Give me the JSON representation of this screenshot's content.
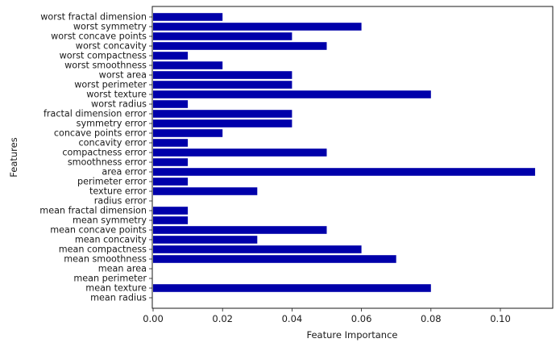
{
  "chart_data": {
    "type": "bar",
    "orientation": "horizontal",
    "title": "",
    "xlabel": "Feature Importance",
    "ylabel": "Features",
    "xlim": [
      0,
      0.1155
    ],
    "xticks": [
      0.0,
      0.02,
      0.04,
      0.06,
      0.08,
      0.1
    ],
    "xtick_labels": [
      "0.00",
      "0.02",
      "0.04",
      "0.06",
      "0.08",
      "0.10"
    ],
    "grid": false,
    "bar_color": "#0000aa",
    "categories": [
      "mean radius",
      "mean texture",
      "mean perimeter",
      "mean area",
      "mean smoothness",
      "mean compactness",
      "mean concavity",
      "mean concave points",
      "mean symmetry",
      "mean fractal dimension",
      "radius error",
      "texture error",
      "perimeter error",
      "area error",
      "smoothness error",
      "compactness error",
      "concavity error",
      "concave points error",
      "symmetry error",
      "fractal dimension error",
      "worst radius",
      "worst texture",
      "worst perimeter",
      "worst area",
      "worst smoothness",
      "worst compactness",
      "worst concavity",
      "worst concave points",
      "worst symmetry",
      "worst fractal dimension"
    ],
    "values": [
      0.0,
      0.08,
      0.0,
      0.0,
      0.07,
      0.06,
      0.03,
      0.05,
      0.01,
      0.01,
      0.0,
      0.03,
      0.01,
      0.11,
      0.01,
      0.05,
      0.01,
      0.02,
      0.04,
      0.04,
      0.01,
      0.08,
      0.04,
      0.04,
      0.02,
      0.01,
      0.05,
      0.04,
      0.06,
      0.02
    ]
  }
}
